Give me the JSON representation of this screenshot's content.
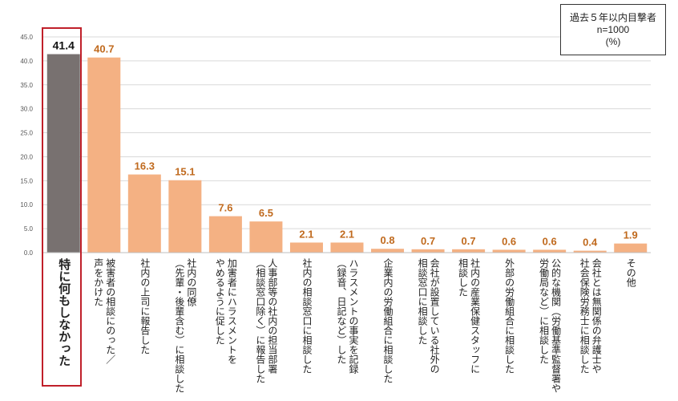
{
  "legend": {
    "line1": "過去５年以内目撃者",
    "line2": "n=1000",
    "line3": "(%)"
  },
  "colors": {
    "highlight_bar": "#787170",
    "bar": "#f4b183",
    "value_label": "#c06a1e",
    "highlight_border": "#c0202a",
    "grid": "#d9d9d9"
  },
  "chart_data": {
    "type": "bar",
    "title": "",
    "xlabel": "",
    "ylabel": "",
    "ylim": [
      0,
      45
    ],
    "yticks": [
      "0.0",
      "5.0",
      "10.0",
      "15.0",
      "20.0",
      "25.0",
      "30.0",
      "35.0",
      "40.0",
      "45.0"
    ],
    "categories": [
      "特に何もしなかった",
      "被害者の相談にのった／声をかけた",
      "社内の上司に報告した",
      "社内の同僚（先輩・後輩含む）に相談した",
      "加害者にハラスメントをやめるように促した",
      "人事部等の社内の担当部署（相談窓口除く）に報告した",
      "社内の相談窓口に相談した",
      "ハラスメントの事実を記録（録音、日記など）した",
      "企業内の労働組合に相談した",
      "会社が設置している社外の相談窓口に相談した",
      "社内の産業保健スタッフに相談した",
      "外部の労働組合に相談した",
      "公的な機関（労働基準監督署や労働局など）に相談した",
      "会社とは無関係の弁護士や社会保険労務士に相談した",
      "その他"
    ],
    "label_lines": [
      [
        "特に何もしなかった"
      ],
      [
        "被害者の相談にのった／",
        "声をかけた"
      ],
      [
        "社内の上司に報告した"
      ],
      [
        "社内の同僚",
        "（先輩・後輩含む）に相談した"
      ],
      [
        "加害者にハラスメントを",
        "やめるように促した"
      ],
      [
        "人事部等の社内の担当部署",
        "（相談窓口除く）に報告した"
      ],
      [
        "社内の相談窓口に相談した"
      ],
      [
        "ハラスメントの事実を記録",
        "（録音、日記など）した"
      ],
      [
        "企業内の労働組合に相談した"
      ],
      [
        "会社が設置している社外の",
        "相談窓口に相談した"
      ],
      [
        "社内の産業保健スタッフに",
        "相談した"
      ],
      [
        "外部の労働組合に相談した"
      ],
      [
        "公的な機関（労働基準監督署や",
        "労働局など）に相談した"
      ],
      [
        "会社とは無関係の弁護士や",
        "社会保険労務士に相談した"
      ],
      [
        "その他"
      ]
    ],
    "values": [
      41.4,
      40.7,
      16.3,
      15.1,
      7.6,
      6.5,
      2.1,
      2.1,
      0.8,
      0.7,
      0.7,
      0.6,
      0.6,
      0.4,
      1.9
    ],
    "value_labels": [
      "41.4",
      "40.7",
      "16.3",
      "15.1",
      "7.6",
      "6.5",
      "2.1",
      "2.1",
      "0.8",
      "0.7",
      "0.7",
      "0.6",
      "0.6",
      "0.4",
      "1.9"
    ],
    "highlighted_index": 0
  }
}
